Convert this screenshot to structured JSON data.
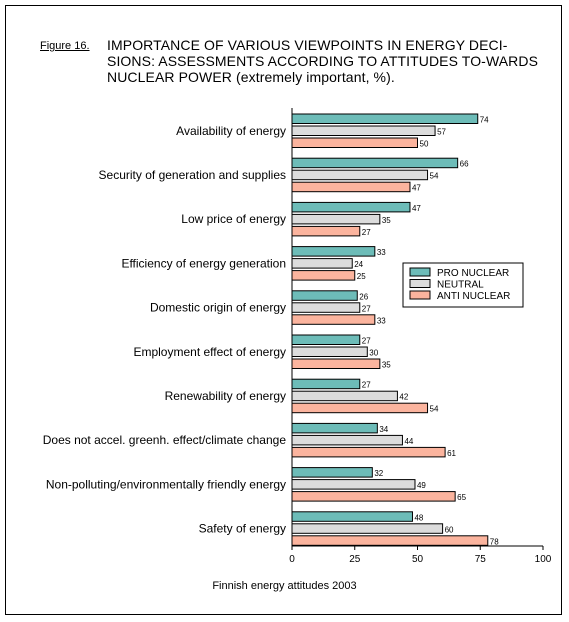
{
  "figure_label": "Figure 16.",
  "title": "IMPORTANCE OF VARIOUS VIEWPOINTS IN ENERGY DECI-SIONS: ASSESSMENTS ACCORDING TO ATTITUDES TO-WARDS NUCLEAR POWER (extremely important, %).",
  "source": "Finnish energy attitudes 2003",
  "colors": {
    "pro": "#6dbcb8",
    "neutral": "#dcdcdc",
    "anti": "#fbb49e"
  },
  "chart_data": {
    "type": "bar",
    "orientation": "horizontal",
    "categories": [
      "Availability of energy",
      "Security of generation and supplies",
      "Low price of energy",
      "Efficiency of energy generation",
      "Domestic origin of energy",
      "Employment effect of energy",
      "Renewability of energy",
      "Does not accel. greenh. effect/climate change",
      "Non-polluting/environmentally friendly energy",
      "Safety of energy"
    ],
    "series": [
      {
        "name": "PRO NUCLEAR",
        "values": [
          74,
          66,
          47,
          33,
          26,
          27,
          27,
          34,
          32,
          48
        ]
      },
      {
        "name": "NEUTRAL",
        "values": [
          57,
          54,
          35,
          24,
          27,
          30,
          42,
          44,
          49,
          60
        ]
      },
      {
        "name": "ANTI NUCLEAR",
        "values": [
          50,
          47,
          27,
          25,
          33,
          35,
          54,
          61,
          65,
          78
        ]
      }
    ],
    "xlim": [
      0,
      100
    ],
    "xticks": [
      0,
      25,
      50,
      75,
      100
    ],
    "legend_position": "right"
  }
}
